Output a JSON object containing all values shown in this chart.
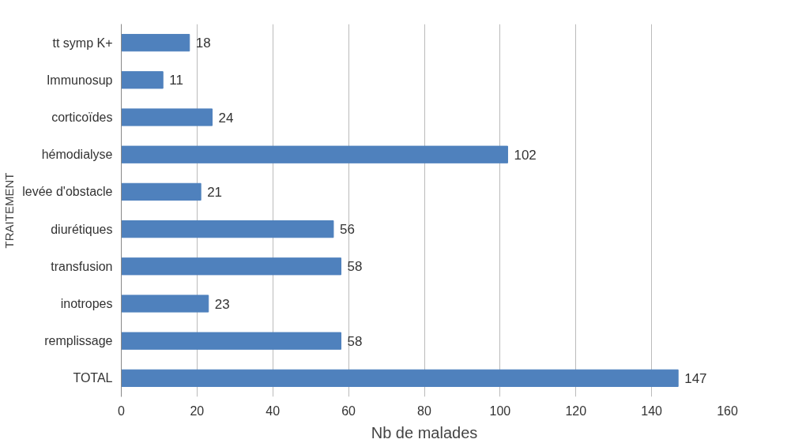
{
  "chart_data": {
    "type": "bar",
    "orientation": "horizontal",
    "xlabel": "Nb de malades",
    "ylabel": "TRAITEMENT",
    "categories": [
      "tt symp K+",
      "Immunosup",
      "corticoïdes",
      "hémodialyse",
      "levée d'obstacle",
      "diurétiques",
      "transfusion",
      "inotropes",
      "remplissage",
      "TOTAL"
    ],
    "values": [
      18,
      11,
      24,
      102,
      21,
      56,
      58,
      23,
      58,
      147
    ],
    "color": "#4f81bd",
    "xlim": [
      0,
      160
    ],
    "xticks": [
      0,
      20,
      40,
      60,
      80,
      100,
      120,
      140,
      160
    ],
    "grid": "x",
    "data_labels": true
  }
}
